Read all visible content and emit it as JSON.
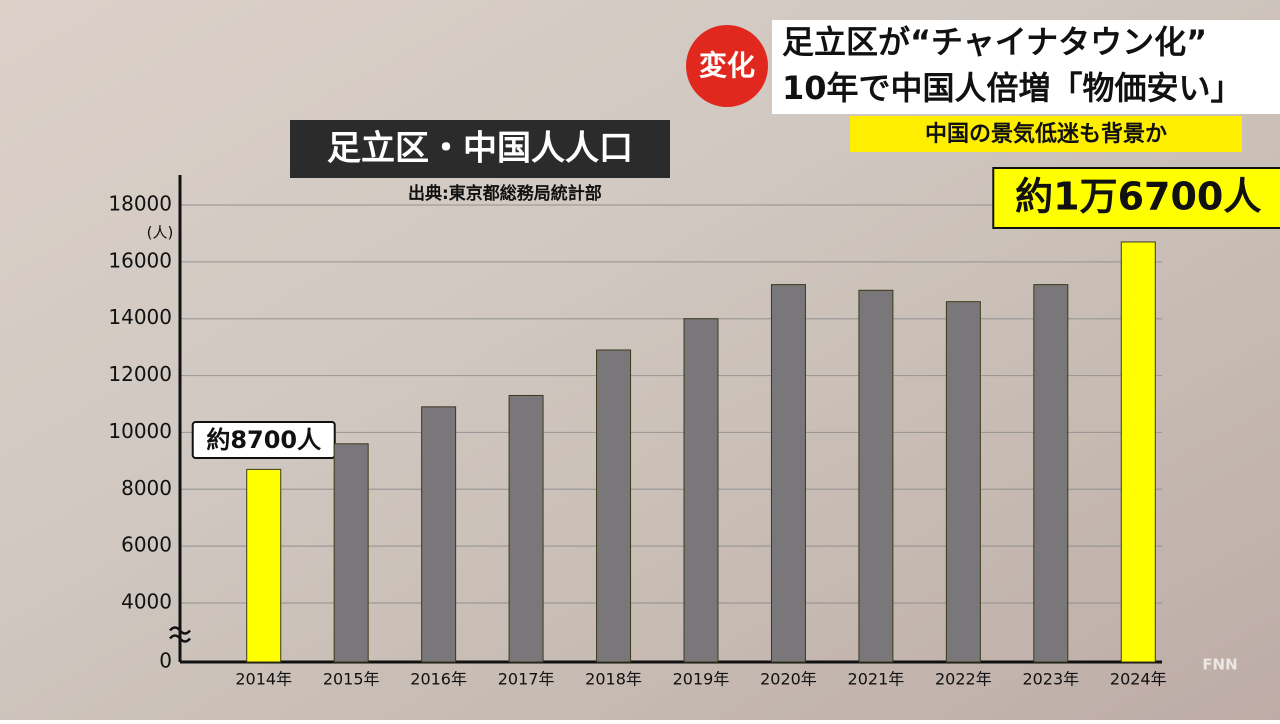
{
  "chart_data": {
    "type": "bar",
    "title": "足立区・中国人人口",
    "source": "出典:東京都総務局統計部",
    "y_unit": "(人)",
    "categories": [
      "2014年",
      "2015年",
      "2016年",
      "2017年",
      "2018年",
      "2019年",
      "2020年",
      "2021年",
      "2022年",
      "2023年",
      "2024年"
    ],
    "values": [
      8700,
      9600,
      10900,
      11300,
      12900,
      14000,
      15200,
      15000,
      14600,
      15200,
      16700
    ],
    "value_labels": [
      "約8700人",
      null,
      null,
      null,
      null,
      null,
      null,
      null,
      null,
      null,
      "約1万6700人"
    ],
    "colors": [
      "#ffff00",
      "#7a777a",
      "#7a777a",
      "#7a777a",
      "#7a777a",
      "#7a777a",
      "#7a777a",
      "#7a777a",
      "#7a777a",
      "#7a777a",
      "#ffff00"
    ],
    "ylim": [
      0,
      18000
    ],
    "yticks": [
      0,
      4000,
      6000,
      8000,
      10000,
      12000,
      14000,
      16000,
      18000
    ],
    "axis_break": [
      0,
      4000
    ],
    "grid": true
  },
  "headline": {
    "badge": "変化",
    "line1": "足立区が“チャイナタウン化”",
    "line2": "10年で中国人倍増「物価安い」",
    "subline": "中国の景気低迷も背景か"
  },
  "logo": "FNN"
}
